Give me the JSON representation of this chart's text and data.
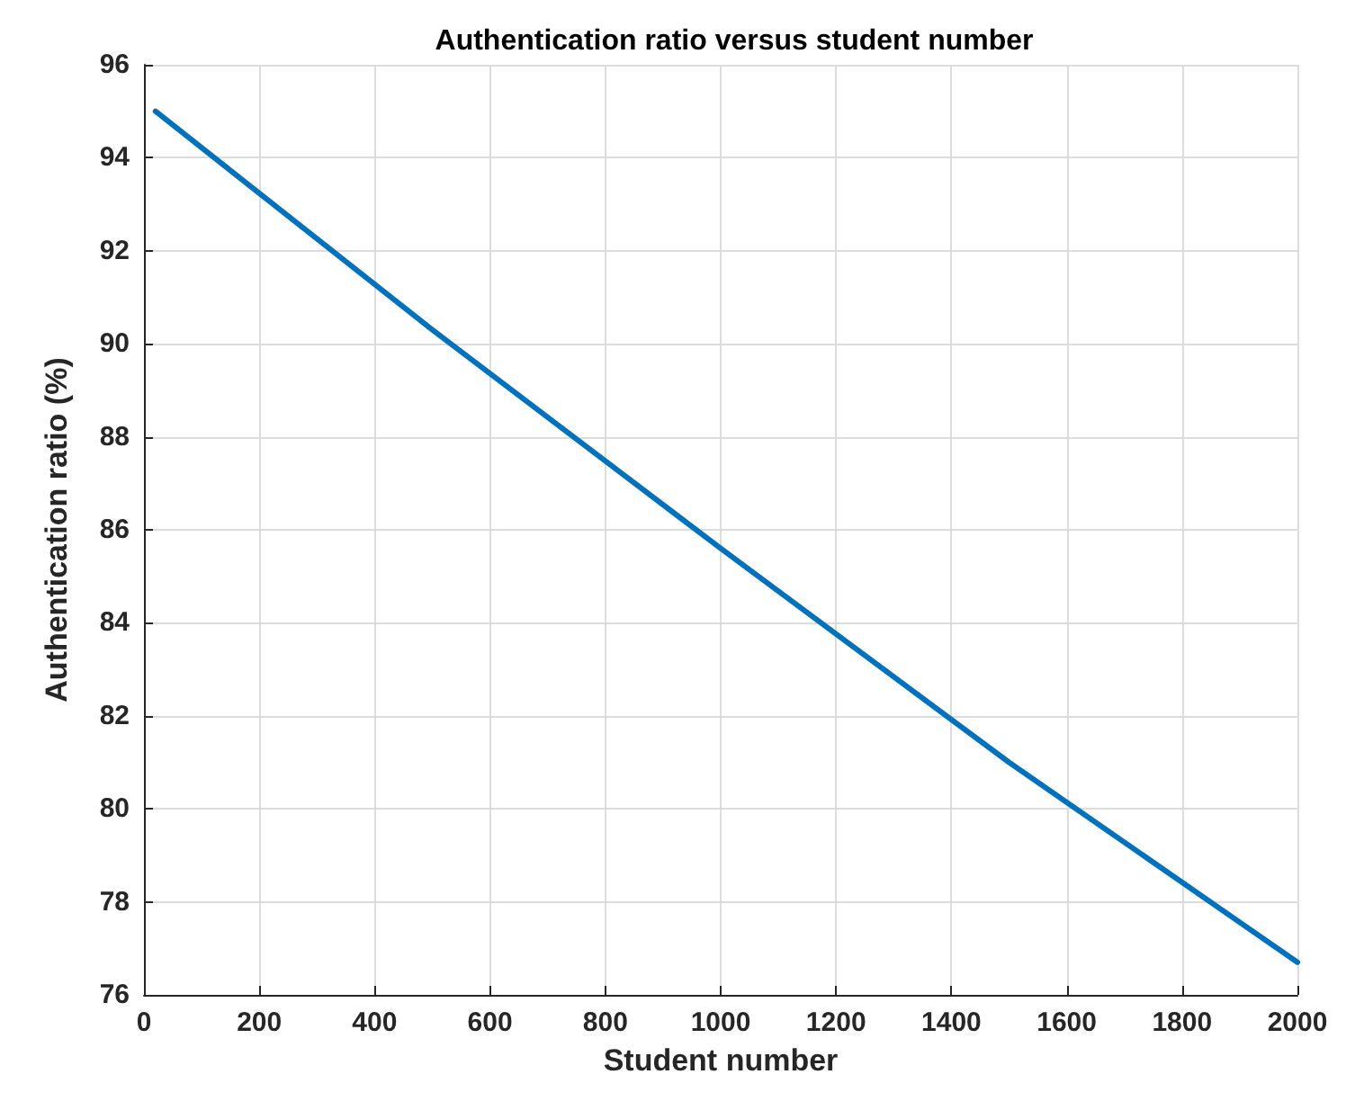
{
  "chart_data": {
    "type": "line",
    "title": "Authentication ratio versus student number",
    "xlabel": "Student number",
    "ylabel": "Authentication ratio (%)",
    "x": [
      20,
      500,
      1000,
      1500,
      2000
    ],
    "series": [
      {
        "color": "#0072bd",
        "values": [
          95,
          90.3,
          85.6,
          81,
          76.7
        ]
      }
    ],
    "xlim": [
      0,
      2000
    ],
    "xticks": [
      0,
      200,
      400,
      600,
      800,
      1000,
      1200,
      1400,
      1600,
      1800,
      2000
    ],
    "ylim": [
      76,
      96
    ],
    "yticks": [
      76,
      78,
      80,
      82,
      84,
      86,
      88,
      90,
      92,
      94,
      96
    ],
    "grid": true,
    "marker": "none",
    "line_style": "solid"
  }
}
